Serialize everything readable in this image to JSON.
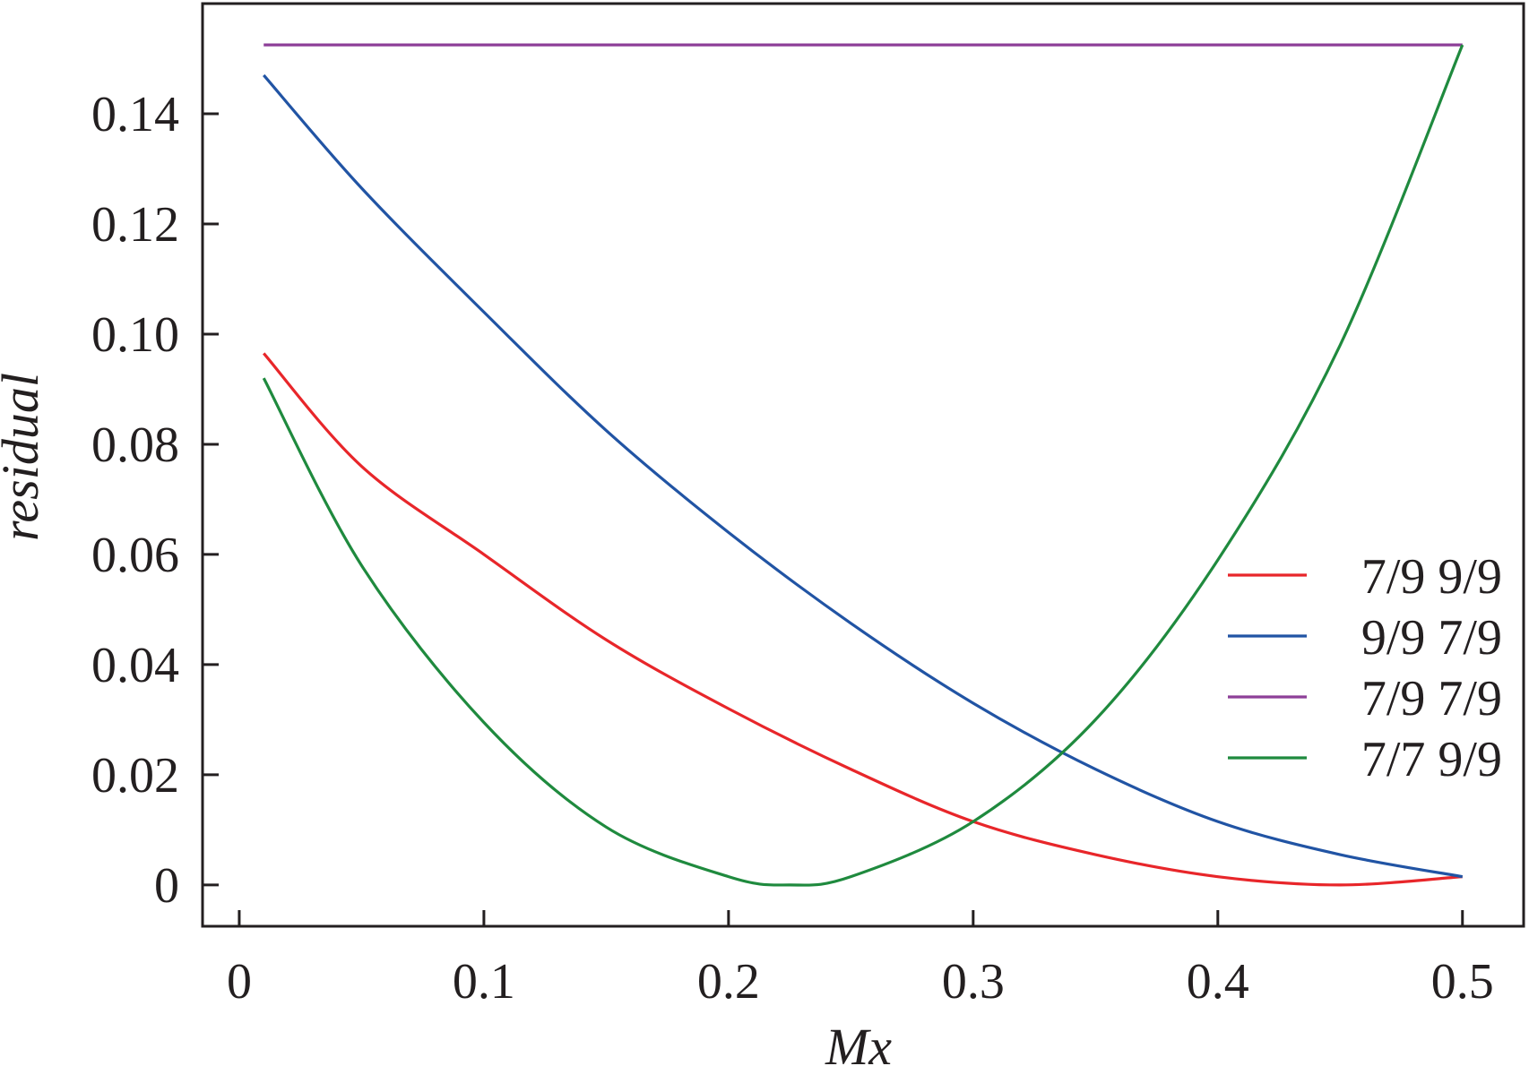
{
  "chart_data": {
    "type": "line",
    "title": "",
    "xlabel": "Mx",
    "ylabel": "residual",
    "xlim": [
      -0.015,
      0.525
    ],
    "ylim": [
      -0.0075,
      0.16
    ],
    "x_ticks": [
      0,
      0.1,
      0.2,
      0.3,
      0.4,
      0.5
    ],
    "x_tick_labels": [
      "0",
      "0.1",
      "0.2",
      "0.3",
      "0.4",
      "0.5"
    ],
    "y_ticks": [
      0,
      0.02,
      0.04,
      0.06,
      0.08,
      0.1,
      0.12,
      0.14
    ],
    "y_tick_labels": [
      "0",
      "0.02",
      "0.04",
      "0.06",
      "0.08",
      "0.10",
      "0.12",
      "0.14"
    ],
    "grid": false,
    "legend_position": "right",
    "series": [
      {
        "name": "7/9 9/9",
        "color": "#e8262a",
        "x": [
          0.01,
          0.05,
          0.1,
          0.15,
          0.2,
          0.25,
          0.3,
          0.35,
          0.4,
          0.45,
          0.5
        ],
        "y": [
          0.0965,
          0.076,
          0.06,
          0.0445,
          0.032,
          0.021,
          0.0115,
          0.0055,
          0.0015,
          0.0,
          0.0015
        ]
      },
      {
        "name": "9/9 7/9",
        "color": "#2154a4",
        "x": [
          0.01,
          0.05,
          0.1,
          0.15,
          0.2,
          0.25,
          0.3,
          0.35,
          0.4,
          0.45,
          0.5
        ],
        "y": [
          0.147,
          0.1265,
          0.104,
          0.0825,
          0.064,
          0.0475,
          0.033,
          0.021,
          0.0115,
          0.0055,
          0.0015
        ]
      },
      {
        "name": "7/9 7/9",
        "color": "#8d3f98",
        "x": [
          0.01,
          0.5
        ],
        "y": [
          0.1525,
          0.1525
        ]
      },
      {
        "name": "7/7 9/9",
        "color": "#1f8a3e",
        "x": [
          0.01,
          0.05,
          0.1,
          0.15,
          0.2,
          0.225,
          0.25,
          0.3,
          0.35,
          0.4,
          0.45,
          0.5
        ],
        "y": [
          0.092,
          0.058,
          0.0295,
          0.0105,
          0.0015,
          0.0,
          0.0015,
          0.0115,
          0.03,
          0.059,
          0.098,
          0.1525
        ]
      }
    ]
  }
}
